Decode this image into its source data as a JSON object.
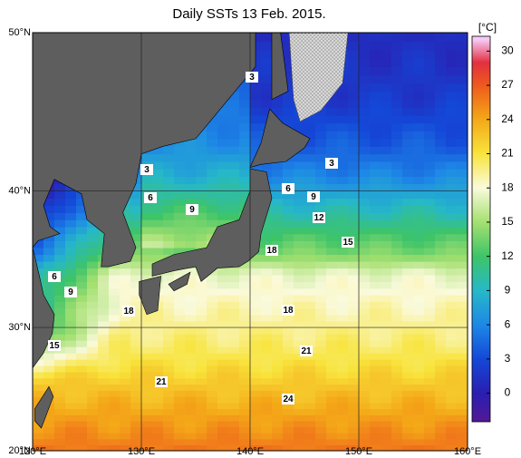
{
  "title": "Daily SSTs 13 Feb. 2015.",
  "lon_ticks": [
    {
      "value": 120,
      "label": "120°E"
    },
    {
      "value": 130,
      "label": "130°E"
    },
    {
      "value": 140,
      "label": "140°E"
    },
    {
      "value": 150,
      "label": "150°E"
    },
    {
      "value": 160,
      "label": "160°E"
    }
  ],
  "lat_ticks": [
    {
      "value": 50,
      "label": "50°N"
    },
    {
      "value": 40,
      "label": "40°N"
    },
    {
      "value": 30,
      "label": "30°N"
    },
    {
      "value": 20,
      "label": "20°N"
    }
  ],
  "colorbar": {
    "label": "[°C]",
    "lim": [
      -2.5,
      31.3
    ],
    "ticks": [
      0,
      3,
      6,
      9,
      12,
      15,
      18,
      21,
      24,
      27,
      30
    ]
  },
  "contour_labels": [
    3,
    3,
    3,
    6,
    6,
    9,
    9,
    12,
    15,
    18,
    18,
    6,
    9,
    18,
    15,
    21,
    21,
    24
  ]
}
